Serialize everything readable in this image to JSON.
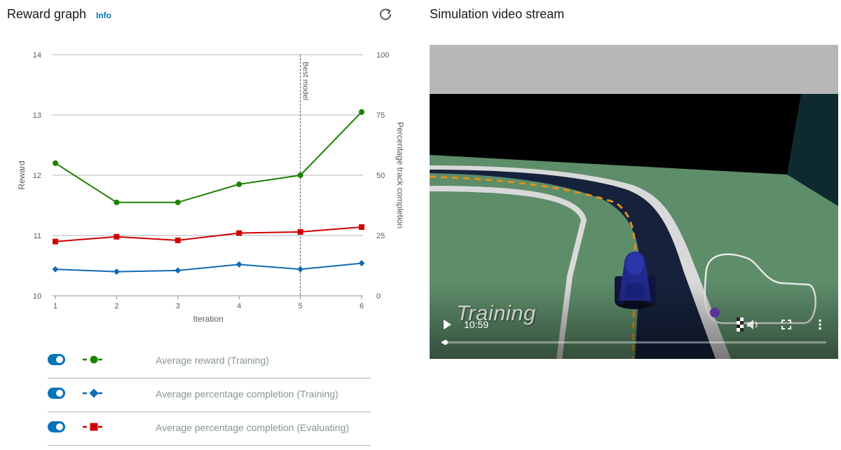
{
  "reward_panel": {
    "title": "Reward graph",
    "info_label": "Info",
    "refresh_icon": "refresh-icon"
  },
  "video_panel": {
    "title": "Simulation video stream",
    "overlay_text": "Training",
    "time": "10:59",
    "progress_fraction": 0.01
  },
  "legend": [
    {
      "label": "Average reward (Training)",
      "enabled": true,
      "color": "#1d8102",
      "marker": "circle"
    },
    {
      "label": "Average percentage completion (Training)",
      "enabled": true,
      "color": "#0f6ab4",
      "marker": "diamond"
    },
    {
      "label": "Average percentage completion (Evaluating)",
      "enabled": true,
      "color": "#d00000",
      "marker": "square"
    }
  ],
  "chart_data": {
    "type": "line",
    "xlabel": "Iteration",
    "ylabel": "Reward",
    "y2label": "Percentage track completion",
    "x": [
      1,
      2,
      3,
      4,
      5,
      6
    ],
    "xticks": [
      "1",
      "2",
      "3",
      "4",
      "5",
      "6"
    ],
    "ylim": [
      10,
      14
    ],
    "yticks": [
      "10",
      "11",
      "12",
      "13",
      "14"
    ],
    "y2lim": [
      0,
      100
    ],
    "y2ticks": [
      "0",
      "25",
      "50",
      "75",
      "100"
    ],
    "grid": true,
    "annotation": {
      "x": 5,
      "label": "Best model"
    },
    "series": [
      {
        "name": "Average reward (Training)",
        "axis": "left",
        "color": "#1d8102",
        "marker": "circle",
        "values": [
          12.2,
          11.55,
          11.55,
          11.85,
          12.0,
          13.05
        ]
      },
      {
        "name": "Average percentage completion (Training)",
        "axis": "right",
        "color": "#0f6ab4",
        "marker": "diamond",
        "values": [
          11,
          10,
          10.5,
          13,
          11,
          13.5
        ]
      },
      {
        "name": "Average percentage completion (Evaluating)",
        "axis": "right",
        "color": "#d00000",
        "marker": "square",
        "values": [
          22.5,
          24.5,
          23,
          26,
          26.5,
          28.5
        ]
      }
    ]
  }
}
